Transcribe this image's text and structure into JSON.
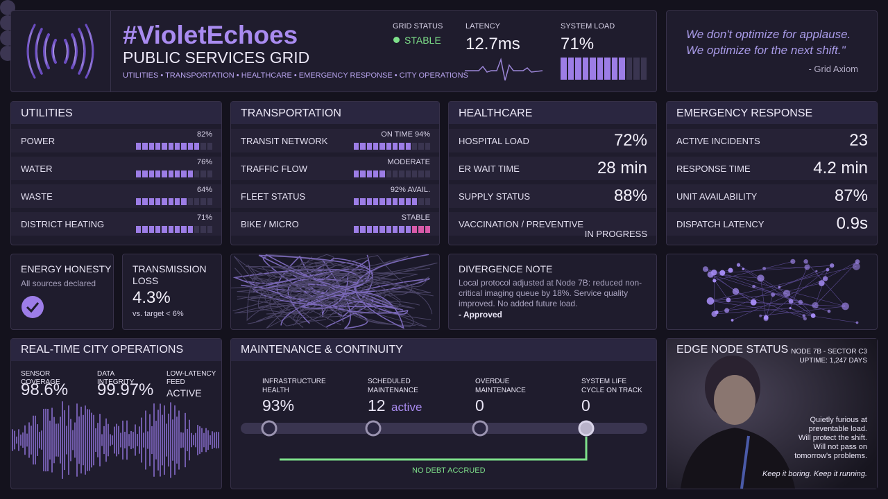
{
  "header": {
    "title": "#VioletEchoes",
    "subtitle": "PUBLIC SERVICES GRID",
    "sectors": "UTILITIES • TRANSPORTATION • HEALTHCARE • EMERGENCY RESPONSE • CITY OPERATIONS",
    "grid_status": {
      "label": "GRID STATUS",
      "value": "STABLE"
    },
    "latency": {
      "label": "LATENCY",
      "value": "12.7ms"
    },
    "system_load": {
      "label": "SYSTEM LOAD",
      "value": "71%"
    }
  },
  "quote": {
    "lines": [
      "We don't optimize for applause.",
      "We optimize for the next shift.\""
    ],
    "attribution": "- Grid Axiom"
  },
  "utilities": {
    "title": "UTILITIES",
    "rows": [
      {
        "label": "POWER",
        "value": "82%"
      },
      {
        "label": "WATER",
        "value": "76%"
      },
      {
        "label": "WASTE",
        "value": "64%"
      },
      {
        "label": "DISTRICT HEATING",
        "value": "71%"
      }
    ]
  },
  "transportation": {
    "title": "TRANSPORTATION",
    "rows": [
      {
        "label": "TRANSIT NETWORK",
        "value": "ON TIME 94%"
      },
      {
        "label": "TRAFFIC FLOW",
        "value": "MODERATE"
      },
      {
        "label": "FLEET STATUS",
        "value": "92% AVAIL."
      },
      {
        "label": "BIKE / MICRO",
        "value": "STABLE"
      }
    ]
  },
  "healthcare": {
    "title": "HEALTHCARE",
    "rows": [
      {
        "label": "HOSPITAL LOAD",
        "value": "72%"
      },
      {
        "label": "ER WAIT TIME",
        "value": "28 min"
      },
      {
        "label": "SUPPLY STATUS",
        "value": "88%"
      },
      {
        "label": "VACCINATION / PREVENTIVE",
        "value": "IN PROGRESS"
      }
    ]
  },
  "emergency": {
    "title": "EMERGENCY RESPONSE",
    "rows": [
      {
        "label": "ACTIVE INCIDENTS",
        "value": "23"
      },
      {
        "label": "RESPONSE TIME",
        "value": "4.2 min"
      },
      {
        "label": "UNIT AVAILABILITY",
        "value": "87%"
      },
      {
        "label": "DISPATCH LATENCY",
        "value": "0.9s"
      }
    ]
  },
  "energy_honesty": {
    "title": "ENERGY HONESTY",
    "text": "All sources declared"
  },
  "transmission_loss": {
    "title": "TRANSMISSION LOSS",
    "value": "4.3%",
    "note": "vs. target < 6%"
  },
  "divergence_note": {
    "title": "DIVERGENCE NOTE",
    "text": "Local protocol adjusted at Node 7B: reduced non-critical imaging queue by 18%. Service quality improved. No added future load.",
    "approval": "- Approved"
  },
  "city_operations": {
    "title": "REAL-TIME CITY OPERATIONS",
    "metrics": [
      {
        "label": "SENSOR COVERAGE",
        "value": "98.6%"
      },
      {
        "label": "DATA INTEGRITY",
        "value": "99.97%"
      },
      {
        "label": "LOW-LATENCY FEED",
        "value": "ACTIVE"
      }
    ]
  },
  "maintenance": {
    "title": "MAINTENANCE & CONTINUITY",
    "items": [
      {
        "label": "INFRASTRUCTURE HEALTH",
        "value": "93%"
      },
      {
        "label": "SCHEDULED MAINTENANCE",
        "value": "12",
        "unit": "active"
      },
      {
        "label": "OVERDUE MAINTENANCE",
        "value": "0"
      },
      {
        "label": "SYSTEM LIFE CYCLE ON TRACK",
        "value": "0"
      }
    ],
    "footer": "NO DEBT ACCRUED"
  },
  "edge_node": {
    "title": "EDGE NODE STATUS",
    "node": "NODE 7B - SECTOR C3",
    "uptime": "UPTIME: 1,247 DAYS",
    "caption": [
      "Quietly furious at preventable load.",
      "Will protect the shift.",
      "Will not pass on tomorrow's problems."
    ],
    "tagline": "Keep it boring. Keep it running."
  }
}
